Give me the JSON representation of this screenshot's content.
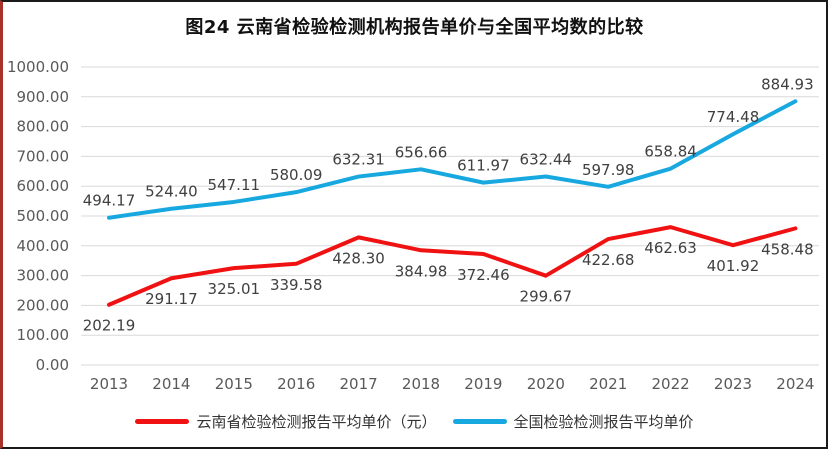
{
  "chart_data": {
    "type": "line",
    "title": "图24 云南省检验检测机构报告单价与全国平均数的比较",
    "xlabel": "",
    "ylabel": "",
    "categories": [
      "2013",
      "2014",
      "2015",
      "2016",
      "2017",
      "2018",
      "2019",
      "2020",
      "2021",
      "2022",
      "2023",
      "2024"
    ],
    "series": [
      {
        "name": "云南省检验检测报告平均单价（元）",
        "color": "#f01212",
        "label_position": "below",
        "values": [
          202.19,
          291.17,
          325.01,
          339.58,
          428.3,
          384.98,
          372.46,
          299.67,
          422.68,
          462.63,
          401.92,
          458.48
        ]
      },
      {
        "name": "全国检验检测报告平均单价",
        "color": "#18a8e0",
        "label_position": "above",
        "values": [
          494.17,
          524.4,
          547.11,
          580.09,
          632.31,
          656.66,
          611.97,
          632.44,
          597.98,
          658.84,
          774.48,
          884.93
        ]
      }
    ],
    "ylim": [
      0,
      1000
    ],
    "y_tick_step": 100,
    "y_tick_labels": [
      "0.00",
      "100.00",
      "200.00",
      "300.00",
      "400.00",
      "500.00",
      "600.00",
      "700.00",
      "800.00",
      "900.00",
      "1000.00"
    ],
    "grid": "horizontal",
    "legend_position": "bottom"
  },
  "styles": {
    "gridline_color": "#d9d9d9",
    "axis_text_color": "#595959",
    "data_label_color": "#404040",
    "title_color": "#111111",
    "legend_text_color": "#333333",
    "frame_border_color": "#1a1a1a",
    "frame_left_edge_color": "#a8322a"
  }
}
